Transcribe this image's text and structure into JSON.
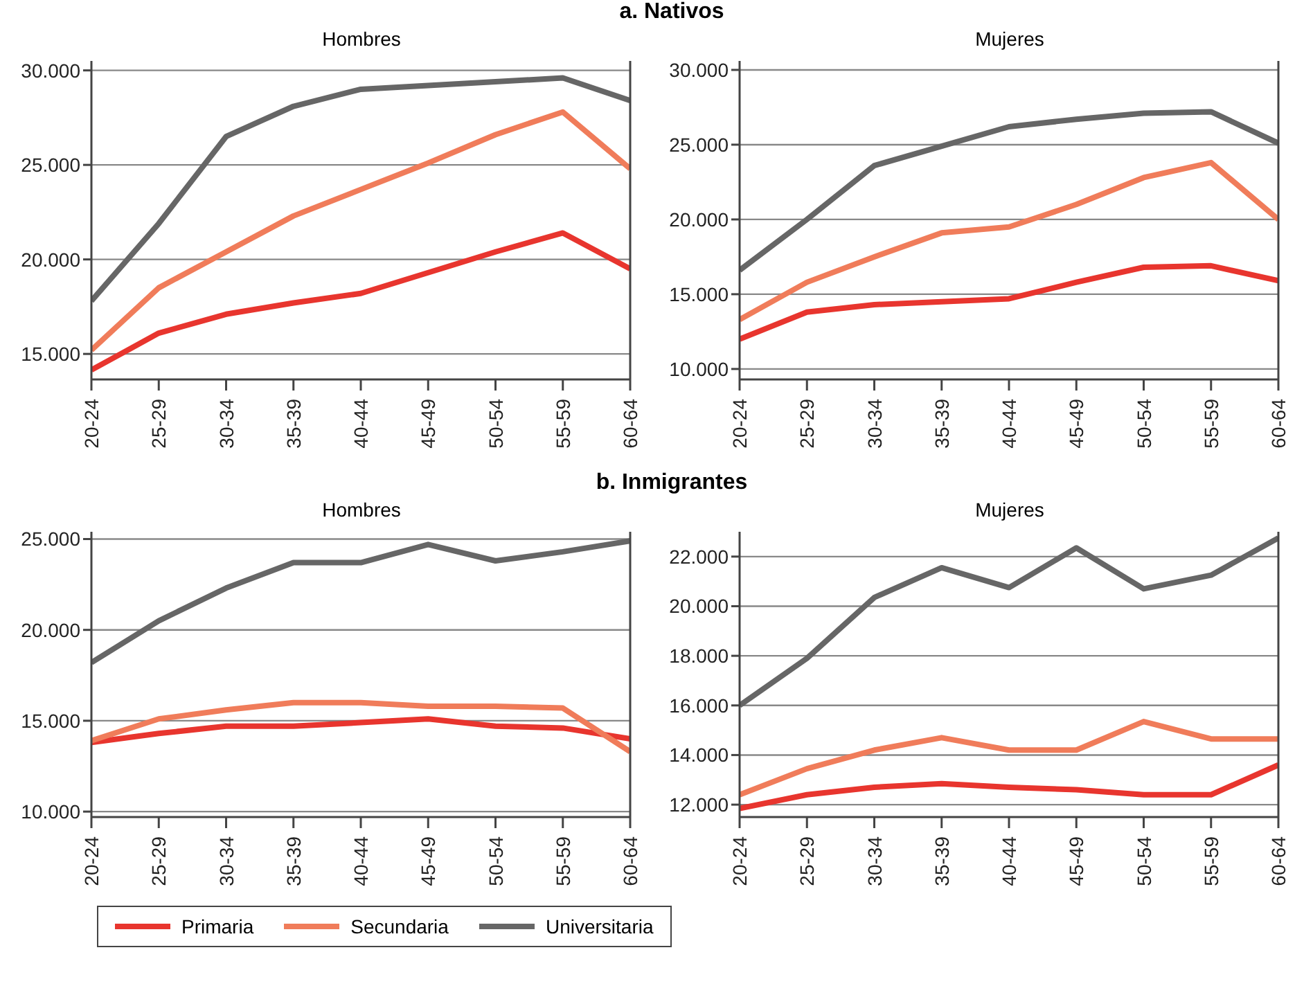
{
  "chart_data": [
    {
      "type": "line",
      "title": "a.  Nativos",
      "subtitle": "Hombres",
      "categories": [
        "20-24",
        "25-29",
        "30-34",
        "35-39",
        "40-44",
        "45-49",
        "50-54",
        "55-59",
        "60-64"
      ],
      "ylim": [
        13650,
        30500
      ],
      "yticks": [
        {
          "value": 15000,
          "label": "15.000"
        },
        {
          "value": 20000,
          "label": "20.000"
        },
        {
          "value": 25000,
          "label": "25.000"
        },
        {
          "value": 30000,
          "label": "30.000"
        }
      ],
      "grid": "y",
      "marker": "none",
      "line_style": "solid",
      "legend": "bottom",
      "series": [
        {
          "name": "Primaria",
          "color": "#e8352e",
          "values": [
            14150,
            16100,
            17100,
            17700,
            18200,
            19300,
            20400,
            21400,
            19500
          ]
        },
        {
          "name": "Secundaria",
          "color": "#f07c5a",
          "values": [
            15200,
            18500,
            20400,
            22300,
            23700,
            25100,
            26600,
            27800,
            24800
          ]
        },
        {
          "name": "Universitaria",
          "color": "#666666",
          "values": [
            17800,
            21900,
            26500,
            28100,
            29000,
            29200,
            29400,
            29600,
            28400
          ]
        }
      ]
    },
    {
      "type": "line",
      "subtitle": "Mujeres",
      "categories": [
        "20-24",
        "25-29",
        "30-34",
        "35-39",
        "40-44",
        "45-49",
        "50-54",
        "55-59",
        "60-64"
      ],
      "ylim": [
        9300,
        30600
      ],
      "yticks": [
        {
          "value": 10000,
          "label": "10.000"
        },
        {
          "value": 15000,
          "label": "15.000"
        },
        {
          "value": 20000,
          "label": "20.000"
        },
        {
          "value": 25000,
          "label": "25.000"
        },
        {
          "value": 30000,
          "label": "30.000"
        }
      ],
      "grid": "y",
      "marker": "none",
      "line_style": "solid",
      "series": [
        {
          "color": "#e8352e",
          "values": [
            12000,
            13800,
            14300,
            14500,
            14700,
            15800,
            16800,
            16900,
            15900
          ]
        },
        {
          "color": "#f07c5a",
          "values": [
            13300,
            15800,
            17500,
            19100,
            19500,
            21000,
            22800,
            23800,
            20000
          ]
        },
        {
          "color": "#666666",
          "values": [
            16600,
            20000,
            23600,
            24900,
            26200,
            26700,
            27100,
            27200,
            25100
          ]
        }
      ]
    },
    {
      "type": "line",
      "title": "b.  Inmigrantes",
      "subtitle": "Hombres",
      "categories": [
        "20-24",
        "25-29",
        "30-34",
        "35-39",
        "40-44",
        "45-49",
        "50-54",
        "55-59",
        "60-64"
      ],
      "ylim": [
        9700,
        25400
      ],
      "yticks": [
        {
          "value": 10000,
          "label": "10.000"
        },
        {
          "value": 15000,
          "label": "15.000"
        },
        {
          "value": 20000,
          "label": "20.000"
        },
        {
          "value": 25000,
          "label": "25.000"
        }
      ],
      "grid": "y",
      "marker": "none",
      "line_style": "solid",
      "series": [
        {
          "color": "#e8352e",
          "values": [
            13800,
            14300,
            14700,
            14700,
            14900,
            15100,
            14700,
            14600,
            14000
          ]
        },
        {
          "color": "#f07c5a",
          "values": [
            13900,
            15100,
            15600,
            16000,
            16000,
            15800,
            15800,
            15700,
            13300
          ]
        },
        {
          "color": "#666666",
          "values": [
            18200,
            20500,
            22300,
            23700,
            23700,
            24700,
            23800,
            24300,
            24900
          ]
        }
      ]
    },
    {
      "type": "line",
      "subtitle": "Mujeres",
      "categories": [
        "20-24",
        "25-29",
        "30-34",
        "35-39",
        "40-44",
        "45-49",
        "50-54",
        "55-59",
        "60-64"
      ],
      "ylim": [
        11500,
        23000
      ],
      "yticks": [
        {
          "value": 12000,
          "label": "12.000"
        },
        {
          "value": 14000,
          "label": "14.000"
        },
        {
          "value": 16000,
          "label": "16.000"
        },
        {
          "value": 18000,
          "label": "18.000"
        },
        {
          "value": 20000,
          "label": "20.000"
        },
        {
          "value": 22000,
          "label": "22.000"
        }
      ],
      "grid": "y",
      "marker": "none",
      "line_style": "solid",
      "series": [
        {
          "color": "#e8352e",
          "values": [
            11850,
            12400,
            12700,
            12850,
            12700,
            12600,
            12400,
            12400,
            13600
          ]
        },
        {
          "color": "#f07c5a",
          "values": [
            12400,
            13450,
            14200,
            14700,
            14200,
            14200,
            15350,
            14650,
            14650
          ]
        },
        {
          "color": "#666666",
          "values": [
            16000,
            17900,
            20350,
            21550,
            20750,
            22350,
            20700,
            21250,
            22750
          ]
        }
      ]
    }
  ]
}
